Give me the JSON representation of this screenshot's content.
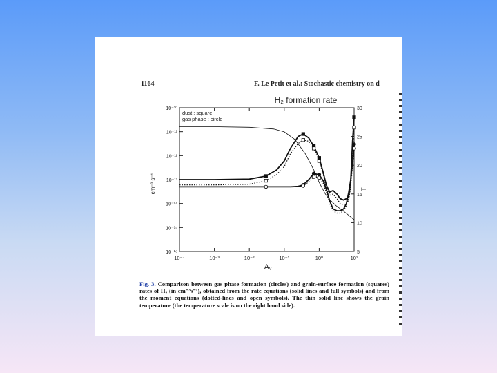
{
  "page": {
    "page_number": "1164",
    "running_head": "F. Le Petit et al.: Stochastic chemistry on d"
  },
  "caption": {
    "label": "Fig. 3.",
    "text": "Comparison between gas phase formation (circles) and grain-surface formation (squares) rates of H₂ (in cm⁻³s⁻¹), obtained from the rate equations (solid lines and full symbols) and from the moment equations (dotted-lines and open symbols). The thin solid line shows the grain temperature (the temperature scale is on the right hand side)."
  },
  "chart_data": {
    "type": "line",
    "title": "H₂ formation rate",
    "legend": [
      "dust : square",
      "gas phase : circle"
    ],
    "xlabel": "Aᵥ",
    "ylabel_left": "cm⁻³ s⁻¹",
    "ylabel_right": "T",
    "x_scale": "log",
    "y_scale": "log",
    "xlim": [
      0.0001,
      10
    ],
    "ylim": [
      1e-16,
      1e-10
    ],
    "ylim_right": [
      5,
      30
    ],
    "x_tick_labels": [
      "10⁻⁴",
      "10⁻³",
      "10⁻²",
      "10⁻¹",
      "10⁰",
      "10¹"
    ],
    "y_tick_labels": [
      "10⁻¹⁰",
      "10⁻¹¹",
      "10⁻¹²",
      "10⁻¹³",
      "10⁻¹⁴",
      "10⁻¹⁵",
      "10⁻¹⁶"
    ],
    "y_right_tick_labels": [
      "30",
      "25",
      "20",
      "15",
      "10",
      "5"
    ],
    "series": [
      {
        "style": "thin-solid",
        "axis": "right",
        "x": [
          0.0001,
          0.001,
          0.01,
          0.05,
          0.1,
          0.2,
          0.4,
          0.7,
          1.0,
          1.5,
          2.0,
          3.0,
          5.0,
          8.0,
          10.0
        ],
        "y": [
          26.7,
          26.7,
          26.6,
          26.3,
          25.8,
          24.5,
          22.0,
          19.2,
          17.0,
          15.0,
          14.0,
          13.0,
          12.0,
          11.0,
          10.5
        ]
      },
      {
        "style": "solid-full-square",
        "axis": "left",
        "x": [
          0.0001,
          0.001,
          0.01,
          0.03,
          0.06,
          0.1,
          0.15,
          0.25,
          0.35,
          0.5,
          0.7,
          1.0,
          1.3,
          1.6,
          2.0,
          2.5,
          3.2,
          4.0,
          5.0,
          6.0,
          7.0,
          8.0,
          9.0,
          10.0
        ],
        "y": [
          1e-13,
          1e-13,
          1.05e-13,
          1.4e-13,
          2.5e-13,
          6e-13,
          2e-12,
          6.3e-12,
          8e-12,
          5.5e-12,
          2.5e-12,
          8e-13,
          2e-13,
          6e-14,
          3e-14,
          3.5e-14,
          2.5e-14,
          1.6e-14,
          1.4e-14,
          1.6e-14,
          2e-14,
          1e-13,
          4e-12,
          4e-11
        ]
      },
      {
        "style": "dotted-open-square",
        "axis": "left",
        "x": [
          0.0001,
          0.001,
          0.01,
          0.03,
          0.06,
          0.1,
          0.15,
          0.25,
          0.35,
          0.5,
          0.7,
          1.0,
          1.3,
          1.6,
          2.0,
          2.5,
          3.2,
          4.0,
          5.0,
          6.0,
          7.0,
          8.0,
          9.0,
          10.0
        ],
        "y": [
          6e-14,
          6e-14,
          6.4e-14,
          9e-14,
          1.6e-13,
          3.5e-13,
          1.2e-12,
          3.2e-12,
          4.5e-12,
          4e-12,
          2e-12,
          6e-13,
          1.6e-13,
          4.5e-14,
          2.2e-14,
          2.5e-14,
          1.6e-14,
          1e-14,
          9e-15,
          1e-14,
          1.4e-14,
          5e-14,
          1.5e-12,
          1.5e-11
        ]
      },
      {
        "style": "solid-full-circle",
        "axis": "left",
        "x": [
          0.0001,
          0.001,
          0.01,
          0.03,
          0.06,
          0.1,
          0.15,
          0.25,
          0.35,
          0.5,
          0.7,
          1.0,
          1.3,
          1.6,
          2.0,
          2.5,
          3.2,
          4.0,
          5.0,
          6.0,
          7.0,
          8.0,
          9.0,
          10.0
        ],
        "y": [
          5e-14,
          5e-14,
          5e-14,
          5e-14,
          5e-14,
          5e-14,
          5e-14,
          5.2e-14,
          6e-14,
          1e-13,
          1.8e-13,
          1.6e-13,
          9e-14,
          4e-14,
          1.3e-14,
          6e-15,
          5e-15,
          5e-15,
          6e-15,
          1e-14,
          3e-14,
          1e-13,
          5e-13,
          3e-12
        ]
      },
      {
        "style": "dotted-open-circle",
        "axis": "left",
        "x": [
          0.0001,
          0.001,
          0.01,
          0.03,
          0.06,
          0.1,
          0.15,
          0.25,
          0.35,
          0.5,
          0.7,
          1.0,
          1.3,
          1.6,
          2.0,
          2.5,
          3.2,
          4.0,
          5.0,
          6.0,
          7.0,
          8.0,
          9.0,
          10.0
        ],
        "y": [
          5e-14,
          5e-14,
          5e-14,
          5e-14,
          5e-14,
          5e-14,
          5e-14,
          5e-14,
          5.5e-14,
          8e-14,
          1.3e-13,
          1.2e-13,
          7e-14,
          3e-14,
          1e-14,
          5e-15,
          4e-15,
          4e-15,
          5e-15,
          8e-15,
          2e-14,
          6e-14,
          3e-13,
          2e-12
        ]
      }
    ],
    "grid": false,
    "legend_position": "top-left"
  }
}
